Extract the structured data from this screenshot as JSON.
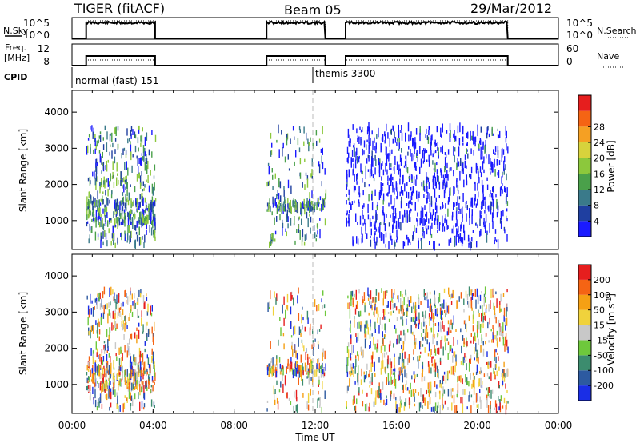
{
  "header": {
    "station": "TIGER (fitACF)",
    "beam": "Beam 05",
    "date": "29/Mar/2012"
  },
  "status_panels": {
    "sky": {
      "left_label": "N.Sky",
      "right_label": "N.Search",
      "left_ticks": [
        "10^5",
        "10^0"
      ],
      "right_ticks": [
        "10^5",
        "10^0"
      ]
    },
    "freq": {
      "left_label_line1": "Freq.",
      "left_label_line2": "[MHz]",
      "right_label": "Nave",
      "left_ticks": [
        "12",
        "8"
      ],
      "right_ticks": [
        "60",
        "0"
      ]
    },
    "cpid": {
      "label": "CPID",
      "programs": [
        {
          "name": "normal (fast) 151",
          "start_hour": 0
        },
        {
          "name": "themis 3300",
          "start_hour": 12
        }
      ]
    }
  },
  "chart_data": [
    {
      "type": "heatmap",
      "name": "power",
      "ylabel": "Slant Range [km]",
      "xlabel": "Time UT",
      "x_range_hours": [
        0,
        24
      ],
      "x_tick_labels": [
        "00:00",
        "04:00",
        "08:00",
        "12:00",
        "16:00",
        "20:00",
        "00:00"
      ],
      "y_range_km": [
        200,
        4600
      ],
      "y_tick_labels": [
        "1000",
        "2000",
        "3000",
        "4000"
      ],
      "colorbar": {
        "label": "Power [dB]",
        "tick_labels": [
          "4",
          "8",
          "12",
          "16",
          "20",
          "24",
          "28"
        ],
        "colors": [
          "#1a1aff",
          "#1f3fa0",
          "#3a7a8a",
          "#4aa04a",
          "#8cc83c",
          "#d7d23c",
          "#f5a023",
          "#f56414",
          "#e61e1e"
        ]
      },
      "data_coverage_hours": [
        [
          0.7,
          4.1
        ],
        [
          9.6,
          12.5
        ],
        [
          13.5,
          21.5
        ]
      ]
    },
    {
      "type": "heatmap",
      "name": "velocity",
      "ylabel": "Slant Range [km]",
      "xlabel": "Time UT",
      "x_range_hours": [
        0,
        24
      ],
      "x_tick_labels": [
        "00:00",
        "04:00",
        "08:00",
        "12:00",
        "16:00",
        "20:00",
        "00:00"
      ],
      "y_range_km": [
        200,
        4600
      ],
      "y_tick_labels": [
        "1000",
        "2000",
        "3000",
        "4000"
      ],
      "colorbar": {
        "label": "Velocity [m s^-1]",
        "tick_labels": [
          "200",
          "100",
          "50",
          "15",
          "-15",
          "-50",
          "-100",
          "-200"
        ],
        "colors": [
          "#1a2ee6",
          "#2d5aa0",
          "#3c8c6e",
          "#6ec83c",
          "#c8c8c8",
          "#f0d23c",
          "#f5a014",
          "#f56414",
          "#e61e1e"
        ]
      },
      "data_coverage_hours": [
        [
          0.7,
          4.1
        ],
        [
          9.6,
          12.5
        ],
        [
          13.5,
          21.5
        ]
      ]
    }
  ]
}
